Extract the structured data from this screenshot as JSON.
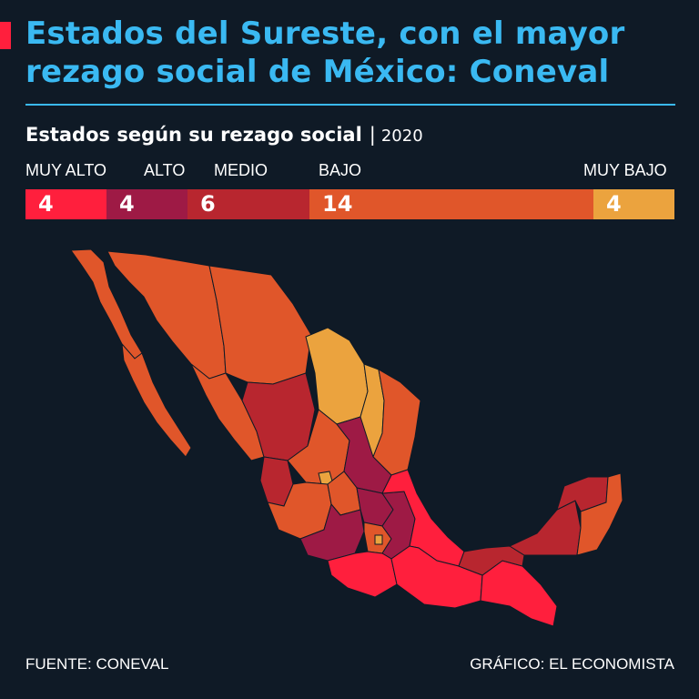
{
  "header": {
    "title_line1": "Estados del Sureste, con el mayor",
    "title_line2": "rezago social de México: Coneval"
  },
  "subtitle": {
    "main": "Estados según su rezago social",
    "separator": "|",
    "year": "2020"
  },
  "categories": [
    {
      "label": "MUY ALTO",
      "count": 4,
      "display": "4",
      "color": "#ff1f3d"
    },
    {
      "label": "ALTO",
      "count": 4,
      "display": "4",
      "color": "#9e1a45"
    },
    {
      "label": "MEDIO",
      "count": 6,
      "display": "6",
      "color": "#b8262f"
    },
    {
      "label": "BAJO",
      "count": 14,
      "display": "14",
      "color": "#e0562a"
    },
    {
      "label": "MUY BAJO",
      "count": 4,
      "display": "4",
      "color": "#eba33e"
    }
  ],
  "map": {
    "region": "México",
    "level_colors": {
      "muy_alto": "#ff1f3d",
      "alto": "#9e1a45",
      "medio": "#b8262f",
      "bajo": "#e0562a",
      "muy_bajo": "#eba33e"
    }
  },
  "footer": {
    "source": "FUENTE: CONEVAL",
    "credit": "GRÁFICO: EL ECONOMISTA"
  }
}
